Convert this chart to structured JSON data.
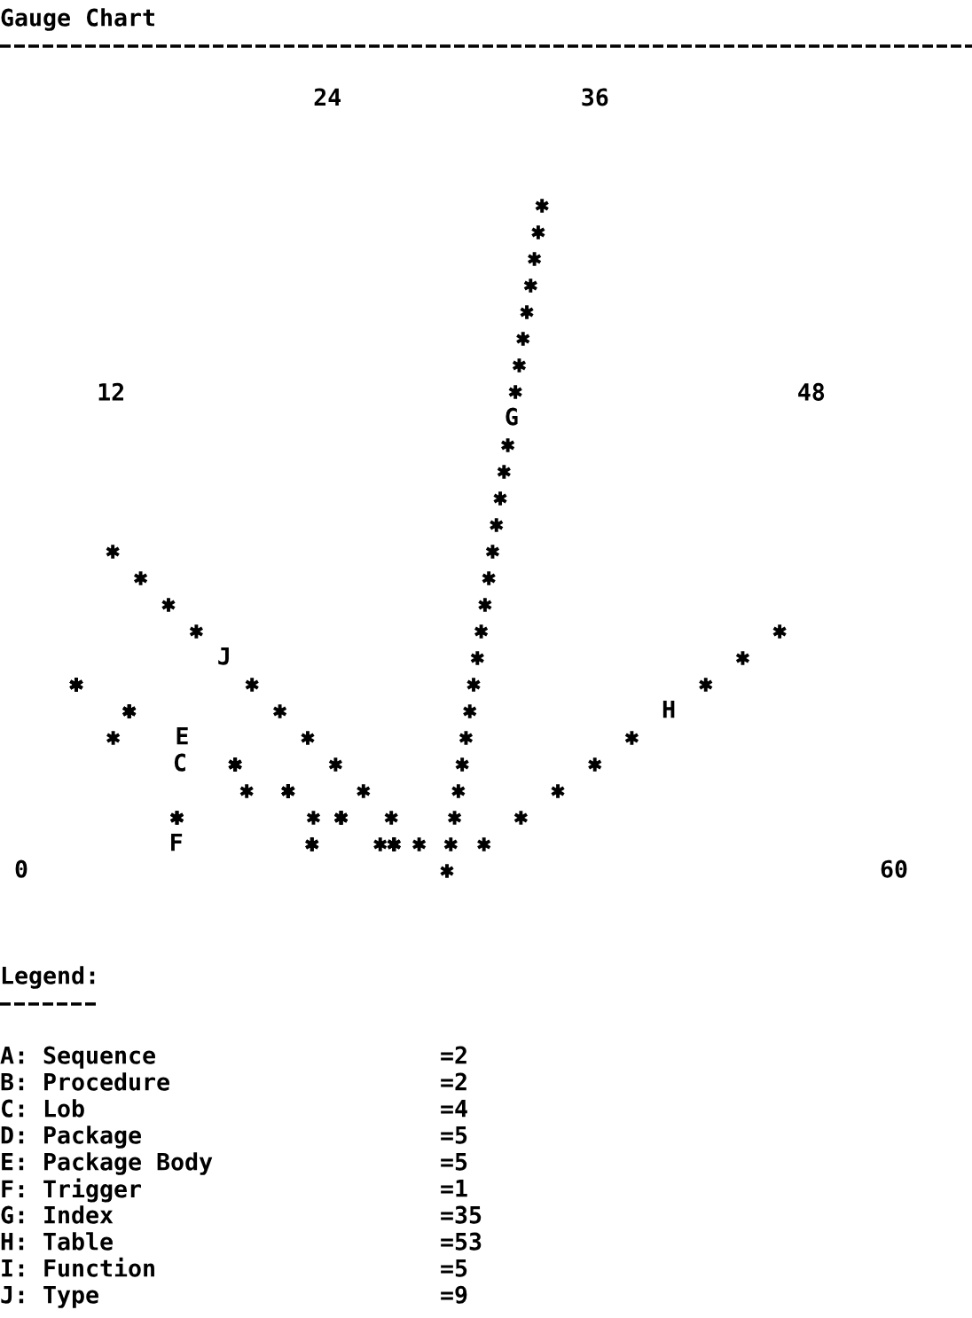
{
  "chart_data": {
    "type": "other",
    "title": "Gauge Chart",
    "categories": [
      "A: Sequence",
      "B: Procedure",
      "C: Lob",
      "D: Package",
      "E: Package Body",
      "F: Trigger",
      "G: Index",
      "H: Table",
      "I: Function",
      "J: Type"
    ],
    "values": [
      2,
      2,
      4,
      5,
      5,
      1,
      35,
      53,
      5,
      9
    ],
    "value_labels": [
      "=2",
      "=2",
      "=4",
      "=5",
      "=5",
      "=1",
      "=35",
      "=53",
      "=5",
      "=9"
    ],
    "color": "#000000",
    "legend_title": "Legend:",
    "annotations": [
      "0",
      "12",
      "24",
      "36",
      "48",
      "60",
      {
        "text": "J",
        "x": "J: Type"
      },
      {
        "text": "E",
        "x": "E: Package Body"
      },
      {
        "text": "C",
        "x": "C: Lob"
      },
      {
        "text": "F",
        "x": "F: Trigger"
      },
      {
        "text": "G",
        "x": "G: Index"
      },
      {
        "text": "H",
        "x": "H: Table"
      }
    ]
  }
}
